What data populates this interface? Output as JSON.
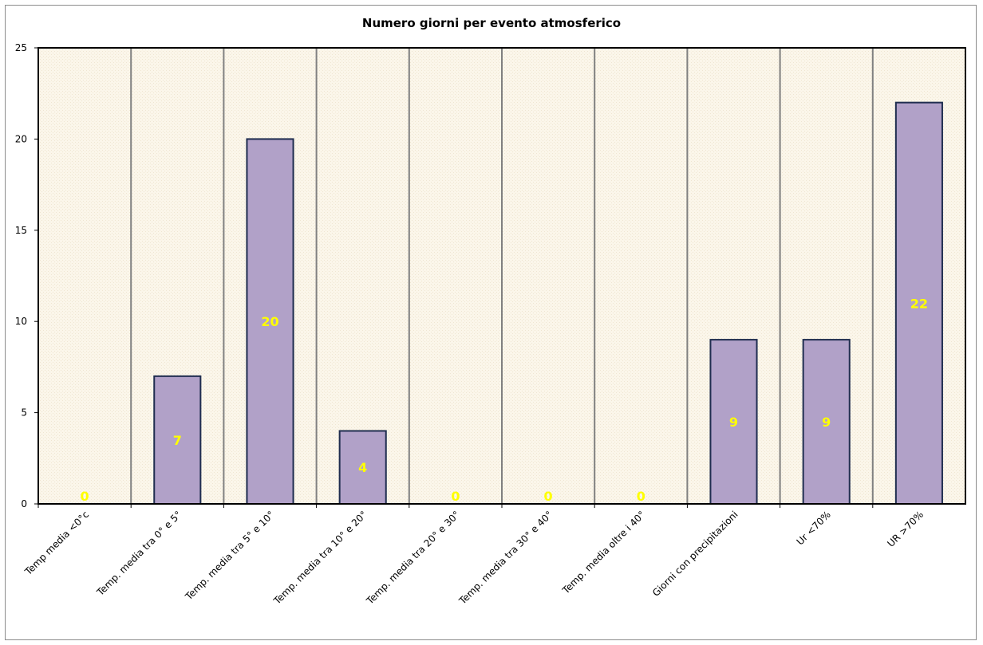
{
  "chart_data": {
    "type": "bar",
    "title": "Numero giorni  per evento atmosferico",
    "categories": [
      "Temp media <0°c",
      "Temp. media tra 0° e 5°",
      "Temp. media tra 5° e 10°",
      "Temp. media tra 10° e 20°",
      "Temp. media tra 20° e 30°",
      "Temp. media tra 30° e 40°",
      "Temp. media oltre i 40°",
      "Giorni con precipitazioni",
      "Ur  <70%",
      "UR >70%"
    ],
    "values": [
      0,
      7,
      20,
      4,
      0,
      0,
      0,
      9,
      9,
      22
    ],
    "data_labels": [
      "0",
      "7",
      "20",
      "4",
      "0",
      "0",
      "0",
      "9",
      "9",
      "22"
    ],
    "ylim": [
      0,
      25
    ],
    "yticks": [
      0,
      5,
      10,
      15,
      20,
      25
    ],
    "ytick_labels": [
      "0",
      "5",
      "10",
      "15",
      "20",
      "25"
    ],
    "xlabel": "",
    "ylabel": "",
    "grid": "vertical category separators",
    "legend": "none",
    "colors": {
      "bar_fill": "#b1a1c8",
      "bar_stroke": "#1f2d4f",
      "plot_background": "#fbf6ea",
      "data_label": "#ffff00",
      "separator": "#808080"
    }
  }
}
